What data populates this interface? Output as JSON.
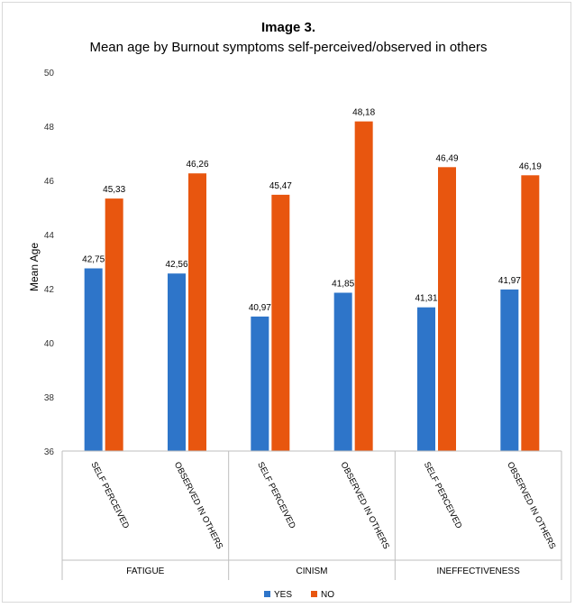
{
  "chart_data": {
    "type": "bar",
    "title": "Image 3.",
    "subtitle": "Mean age by Burnout symptoms self-perceived/observed in others",
    "ylabel": "Mean Age",
    "xlabel": "",
    "ylim": [
      36,
      50
    ],
    "yticks": [
      "36",
      "38",
      "40",
      "42",
      "44",
      "46",
      "48",
      "50"
    ],
    "grid": false,
    "legend_position": "bottom",
    "groups": [
      {
        "label": "FATIGUE",
        "categories": [
          "SELF PERCEIVED",
          "OBSERVED IN OTHERS"
        ]
      },
      {
        "label": "CINISM",
        "categories": [
          "SELF PERCEIVED",
          "OBSERVED IN OTHERS"
        ]
      },
      {
        "label": "INEFFECTIVENESS",
        "categories": [
          "SELF PERCEIVED",
          "OBSERVED IN OTHERS"
        ]
      }
    ],
    "categories": [
      "SELF PERCEIVED",
      "OBSERVED IN OTHERS",
      "SELF PERCEIVED",
      "OBSERVED IN OTHERS",
      "SELF PERCEIVED",
      "OBSERVED IN OTHERS"
    ],
    "series": [
      {
        "name": "YES",
        "color": "#2e75c9",
        "values": [
          42.75,
          42.56,
          40.97,
          41.85,
          41.31,
          41.97
        ],
        "labels": [
          "42,75",
          "42,56",
          "40,97",
          "41,85",
          "41,31",
          "41,97"
        ]
      },
      {
        "name": "NO",
        "color": "#e8560f",
        "values": [
          45.33,
          46.26,
          45.47,
          48.18,
          46.49,
          46.19
        ],
        "labels": [
          "45,33",
          "46,26",
          "45,47",
          "48,18",
          "46,49",
          "46,19"
        ]
      }
    ]
  }
}
